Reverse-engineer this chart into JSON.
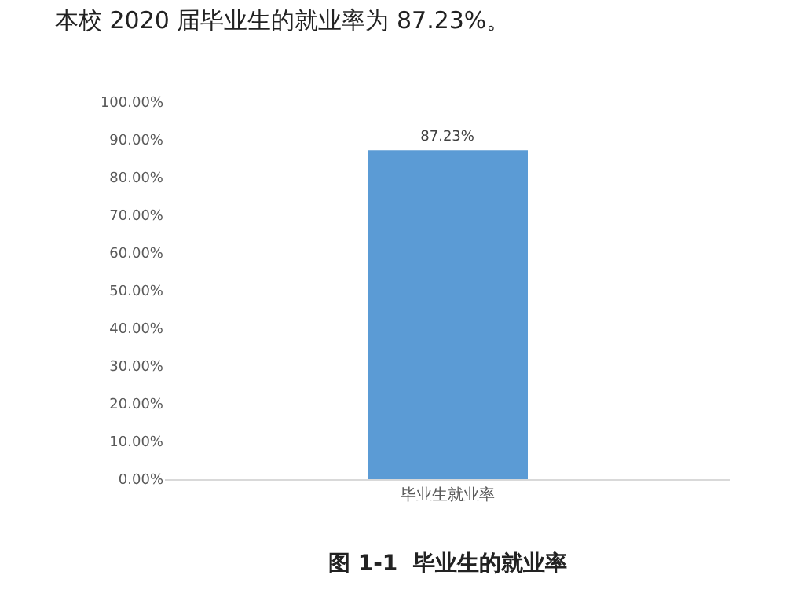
{
  "chart_data": {
    "type": "bar",
    "title": "本校 2020 届毕业生的就业率为 87.23%。",
    "annotations": [
      "图 1-1  毕业生的就业率"
    ],
    "categories": [
      "毕业生就业率"
    ],
    "values": [
      87.23
    ],
    "color": "#5b9bd5",
    "data_labels": true,
    "value_labels": [
      "87.23%"
    ],
    "ylim": [
      0,
      100
    ],
    "yticks": [
      {
        "value": 0,
        "label": "0.00%"
      },
      {
        "value": 10,
        "label": "10.00%"
      },
      {
        "value": 20,
        "label": "20.00%"
      },
      {
        "value": 30,
        "label": "30.00%"
      },
      {
        "value": 40,
        "label": "40.00%"
      },
      {
        "value": 50,
        "label": "50.00%"
      },
      {
        "value": 60,
        "label": "60.00%"
      },
      {
        "value": 70,
        "label": "70.00%"
      },
      {
        "value": 80,
        "label": "80.00%"
      },
      {
        "value": 90,
        "label": "90.00%"
      },
      {
        "value": 100,
        "label": "100.00%"
      }
    ],
    "legend": false
  }
}
